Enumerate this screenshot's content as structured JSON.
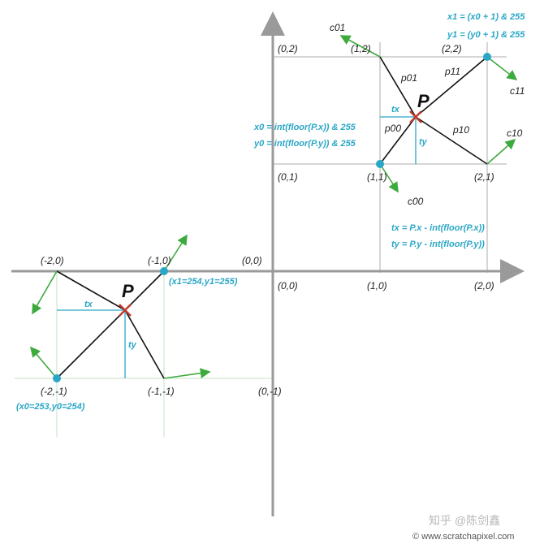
{
  "axis_labels": {
    "origin_top": "(0,0)",
    "origin_bottom": "(0,0)",
    "p02": "(0,2)",
    "p12": "(1,2)",
    "p22": "(2,2)",
    "p01": "(0,1)",
    "p11": "(1,1)",
    "p21": "(2,1)",
    "p10": "(1,0)",
    "p20": "(2,0)",
    "pm20": "(-2,0)",
    "pm10": "(-1,0)",
    "pm2m1": "(-2,-1)",
    "pm1m1": "(-1,-1)",
    "p0m1": "(0,-1)"
  },
  "vectors": {
    "c01": "c01",
    "c11": "c11",
    "c10": "c10",
    "c00": "c00"
  },
  "segments": {
    "p01": "p01",
    "p11": "p11",
    "p00": "p00",
    "p10": "p10"
  },
  "offsets": {
    "tx_top": "tx",
    "ty_top": "ty",
    "tx_left": "tx",
    "ty_left": "ty"
  },
  "point_label": {
    "top": "P",
    "left": "P"
  },
  "formulas": {
    "x1": "x1 = (x0 + 1) & 255",
    "y1": "y1 = (y0 + 1) & 255",
    "x0": "x0 = int(floor(P.x)) & 255",
    "y0": "y0 = int(floor(P.y)) & 255",
    "tx": "tx = P.x - int(floor(P.x))",
    "ty": "ty = P.y - int(floor(P.y))"
  },
  "wrap_labels": {
    "upper": "(x1=254,y1=255)",
    "lower": "(x0=253,y0=254)"
  },
  "watermark": {
    "zhihu": "知乎 @陈剑鑫",
    "site": "© www.scratchapixel.com"
  },
  "colors": {
    "axis": "#9a9a9a",
    "grid": "#c8c8c8",
    "green": "#3daa3d",
    "cyan": "#2aa7c6",
    "red": "#c0392b"
  }
}
